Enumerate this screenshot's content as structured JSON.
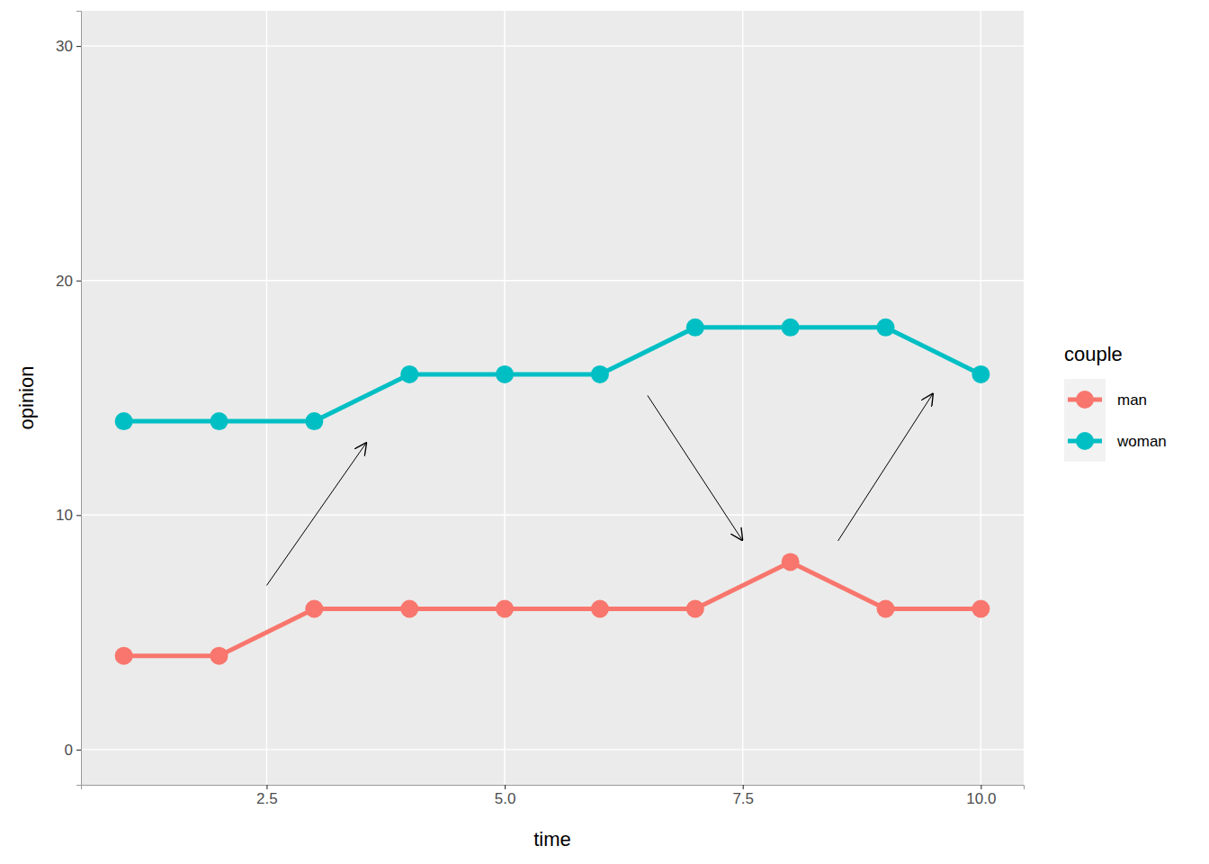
{
  "chart_data": {
    "type": "line",
    "x_label": "time",
    "y_label": "opinion",
    "legend_title": "couple",
    "x": [
      1,
      2,
      3,
      4,
      5,
      6,
      7,
      8,
      9,
      10
    ],
    "series": [
      {
        "name": "man",
        "color": "#F8766D",
        "values": [
          4,
          4,
          6,
          6,
          6,
          6,
          6,
          8,
          6,
          6
        ]
      },
      {
        "name": "woman",
        "color": "#00BFC4",
        "values": [
          14,
          14,
          14,
          16,
          16,
          16,
          18,
          18,
          18,
          16
        ]
      }
    ],
    "xlim": [
      0.55,
      10.45
    ],
    "xticks": [
      {
        "value": 2.5,
        "label": "2.5"
      },
      {
        "value": 5,
        "label": "5.0"
      },
      {
        "value": 7.5,
        "label": "7.5"
      },
      {
        "value": 10,
        "label": "10.0"
      }
    ],
    "ylim": [
      -1.5,
      31.5
    ],
    "yticks": [
      0,
      10,
      20,
      30
    ],
    "grid": true,
    "legend": "right",
    "marker": "circle",
    "line_style": "solid"
  }
}
